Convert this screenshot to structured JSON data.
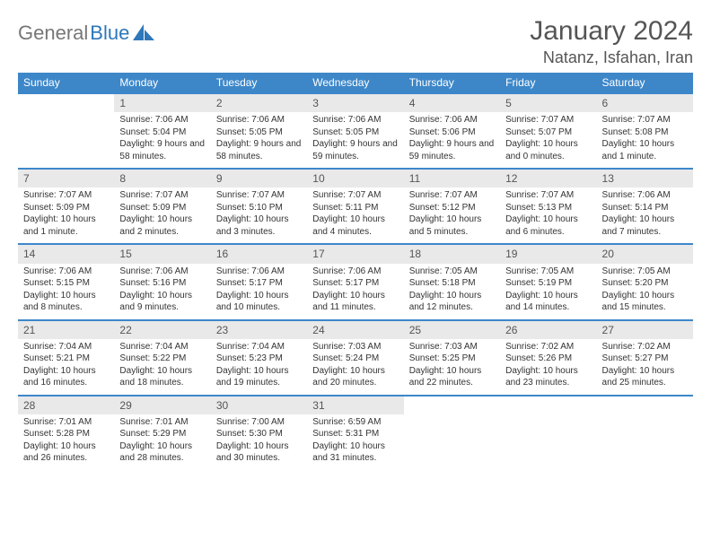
{
  "brand": {
    "part1": "General",
    "part2": "Blue"
  },
  "title": "January 2024",
  "location": "Natanz, Isfahan, Iran",
  "colors": {
    "header_bg": "#3d87c9",
    "header_text": "#ffffff",
    "daynum_bg": "#e9e9e9",
    "row_border": "#3d87c9",
    "body_text": "#333333",
    "title_text": "#555555",
    "logo_gray": "#777777",
    "logo_blue": "#2e77b8",
    "page_bg": "#ffffff"
  },
  "dow": [
    "Sunday",
    "Monday",
    "Tuesday",
    "Wednesday",
    "Thursday",
    "Friday",
    "Saturday"
  ],
  "weeks": [
    [
      {
        "n": "",
        "sr": "",
        "ss": "",
        "dl": ""
      },
      {
        "n": "1",
        "sr": "Sunrise: 7:06 AM",
        "ss": "Sunset: 5:04 PM",
        "dl": "Daylight: 9 hours and 58 minutes."
      },
      {
        "n": "2",
        "sr": "Sunrise: 7:06 AM",
        "ss": "Sunset: 5:05 PM",
        "dl": "Daylight: 9 hours and 58 minutes."
      },
      {
        "n": "3",
        "sr": "Sunrise: 7:06 AM",
        "ss": "Sunset: 5:05 PM",
        "dl": "Daylight: 9 hours and 59 minutes."
      },
      {
        "n": "4",
        "sr": "Sunrise: 7:06 AM",
        "ss": "Sunset: 5:06 PM",
        "dl": "Daylight: 9 hours and 59 minutes."
      },
      {
        "n": "5",
        "sr": "Sunrise: 7:07 AM",
        "ss": "Sunset: 5:07 PM",
        "dl": "Daylight: 10 hours and 0 minutes."
      },
      {
        "n": "6",
        "sr": "Sunrise: 7:07 AM",
        "ss": "Sunset: 5:08 PM",
        "dl": "Daylight: 10 hours and 1 minute."
      }
    ],
    [
      {
        "n": "7",
        "sr": "Sunrise: 7:07 AM",
        "ss": "Sunset: 5:09 PM",
        "dl": "Daylight: 10 hours and 1 minute."
      },
      {
        "n": "8",
        "sr": "Sunrise: 7:07 AM",
        "ss": "Sunset: 5:09 PM",
        "dl": "Daylight: 10 hours and 2 minutes."
      },
      {
        "n": "9",
        "sr": "Sunrise: 7:07 AM",
        "ss": "Sunset: 5:10 PM",
        "dl": "Daylight: 10 hours and 3 minutes."
      },
      {
        "n": "10",
        "sr": "Sunrise: 7:07 AM",
        "ss": "Sunset: 5:11 PM",
        "dl": "Daylight: 10 hours and 4 minutes."
      },
      {
        "n": "11",
        "sr": "Sunrise: 7:07 AM",
        "ss": "Sunset: 5:12 PM",
        "dl": "Daylight: 10 hours and 5 minutes."
      },
      {
        "n": "12",
        "sr": "Sunrise: 7:07 AM",
        "ss": "Sunset: 5:13 PM",
        "dl": "Daylight: 10 hours and 6 minutes."
      },
      {
        "n": "13",
        "sr": "Sunrise: 7:06 AM",
        "ss": "Sunset: 5:14 PM",
        "dl": "Daylight: 10 hours and 7 minutes."
      }
    ],
    [
      {
        "n": "14",
        "sr": "Sunrise: 7:06 AM",
        "ss": "Sunset: 5:15 PM",
        "dl": "Daylight: 10 hours and 8 minutes."
      },
      {
        "n": "15",
        "sr": "Sunrise: 7:06 AM",
        "ss": "Sunset: 5:16 PM",
        "dl": "Daylight: 10 hours and 9 minutes."
      },
      {
        "n": "16",
        "sr": "Sunrise: 7:06 AM",
        "ss": "Sunset: 5:17 PM",
        "dl": "Daylight: 10 hours and 10 minutes."
      },
      {
        "n": "17",
        "sr": "Sunrise: 7:06 AM",
        "ss": "Sunset: 5:17 PM",
        "dl": "Daylight: 10 hours and 11 minutes."
      },
      {
        "n": "18",
        "sr": "Sunrise: 7:05 AM",
        "ss": "Sunset: 5:18 PM",
        "dl": "Daylight: 10 hours and 12 minutes."
      },
      {
        "n": "19",
        "sr": "Sunrise: 7:05 AM",
        "ss": "Sunset: 5:19 PM",
        "dl": "Daylight: 10 hours and 14 minutes."
      },
      {
        "n": "20",
        "sr": "Sunrise: 7:05 AM",
        "ss": "Sunset: 5:20 PM",
        "dl": "Daylight: 10 hours and 15 minutes."
      }
    ],
    [
      {
        "n": "21",
        "sr": "Sunrise: 7:04 AM",
        "ss": "Sunset: 5:21 PM",
        "dl": "Daylight: 10 hours and 16 minutes."
      },
      {
        "n": "22",
        "sr": "Sunrise: 7:04 AM",
        "ss": "Sunset: 5:22 PM",
        "dl": "Daylight: 10 hours and 18 minutes."
      },
      {
        "n": "23",
        "sr": "Sunrise: 7:04 AM",
        "ss": "Sunset: 5:23 PM",
        "dl": "Daylight: 10 hours and 19 minutes."
      },
      {
        "n": "24",
        "sr": "Sunrise: 7:03 AM",
        "ss": "Sunset: 5:24 PM",
        "dl": "Daylight: 10 hours and 20 minutes."
      },
      {
        "n": "25",
        "sr": "Sunrise: 7:03 AM",
        "ss": "Sunset: 5:25 PM",
        "dl": "Daylight: 10 hours and 22 minutes."
      },
      {
        "n": "26",
        "sr": "Sunrise: 7:02 AM",
        "ss": "Sunset: 5:26 PM",
        "dl": "Daylight: 10 hours and 23 minutes."
      },
      {
        "n": "27",
        "sr": "Sunrise: 7:02 AM",
        "ss": "Sunset: 5:27 PM",
        "dl": "Daylight: 10 hours and 25 minutes."
      }
    ],
    [
      {
        "n": "28",
        "sr": "Sunrise: 7:01 AM",
        "ss": "Sunset: 5:28 PM",
        "dl": "Daylight: 10 hours and 26 minutes."
      },
      {
        "n": "29",
        "sr": "Sunrise: 7:01 AM",
        "ss": "Sunset: 5:29 PM",
        "dl": "Daylight: 10 hours and 28 minutes."
      },
      {
        "n": "30",
        "sr": "Sunrise: 7:00 AM",
        "ss": "Sunset: 5:30 PM",
        "dl": "Daylight: 10 hours and 30 minutes."
      },
      {
        "n": "31",
        "sr": "Sunrise: 6:59 AM",
        "ss": "Sunset: 5:31 PM",
        "dl": "Daylight: 10 hours and 31 minutes."
      },
      {
        "n": "",
        "sr": "",
        "ss": "",
        "dl": ""
      },
      {
        "n": "",
        "sr": "",
        "ss": "",
        "dl": ""
      },
      {
        "n": "",
        "sr": "",
        "ss": "",
        "dl": ""
      }
    ]
  ]
}
